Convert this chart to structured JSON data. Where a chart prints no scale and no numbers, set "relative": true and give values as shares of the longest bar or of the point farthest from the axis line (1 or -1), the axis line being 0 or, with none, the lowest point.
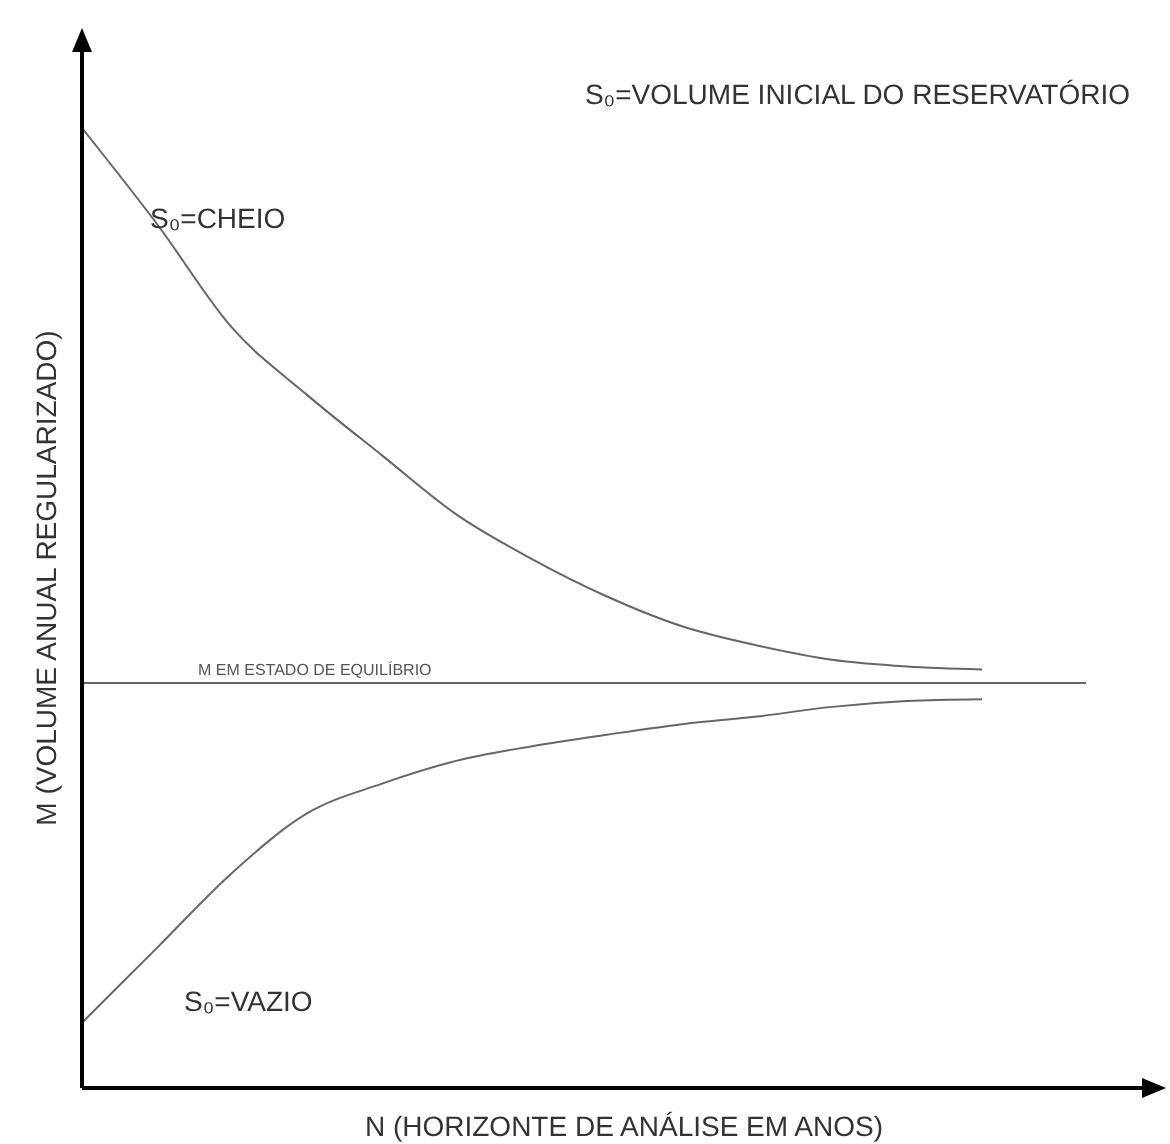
{
  "chart_data": {
    "type": "line",
    "relative": true,
    "xlabel": "N (HORIZONTE DE ANÁLISE EM ANOS)",
    "ylabel": "M (VOLUME ANUAL REGULARIZADO)",
    "annotations": [
      "S₀=VOLUME INICIAL DO RESERVATÓRIO"
    ],
    "categories": [
      null,
      null,
      null,
      null,
      null,
      null,
      null,
      null,
      null,
      null,
      null,
      null,
      null
    ],
    "series": [
      {
        "name": "S₀=CHEIO",
        "color": "#666666",
        "values": [
          1.0,
          0.9,
          0.792,
          0.722,
          0.659,
          0.597,
          0.551,
          0.512,
          0.481,
          0.461,
          0.446,
          0.439,
          0.436
        ]
      },
      {
        "name": "S₀=VAZIO",
        "color": "#666666",
        "values": [
          0.068,
          0.146,
          0.224,
          0.286,
          0.317,
          0.341,
          0.356,
          0.368,
          0.379,
          0.387,
          0.397,
          0.403,
          0.405
        ]
      }
    ],
    "ref_lines": [
      {
        "axis": "y",
        "value": 0.422,
        "label": "M EM ESTADO DE EQUILÍBRIO",
        "color": "#666666"
      }
    ],
    "grid": false,
    "marker": "none",
    "line_style": "solid"
  }
}
